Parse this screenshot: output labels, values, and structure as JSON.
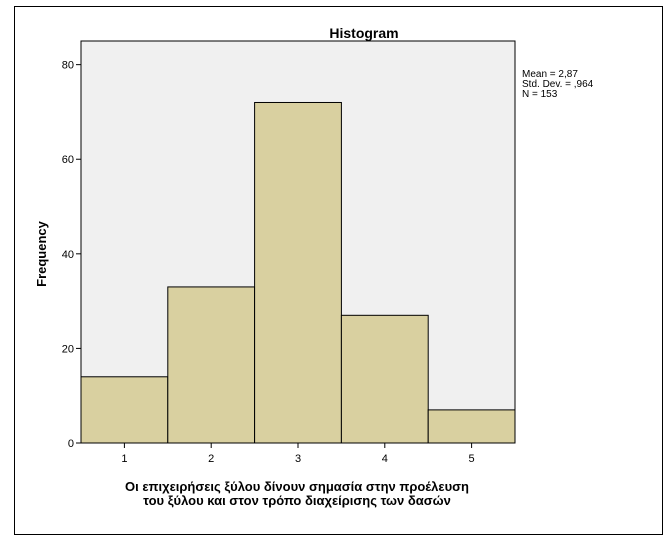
{
  "chart_data": {
    "type": "bar",
    "title": "Histogram",
    "categories": [
      "1",
      "2",
      "3",
      "4",
      "5"
    ],
    "values": [
      14,
      33,
      72,
      27,
      7
    ],
    "ylabel": "Frequency",
    "xlabel_lines": [
      "Οι επιχειρήσεις ξύλου δίνουν σημασία στην προέλευση",
      "του ξύλου και στον τρόπο διαχείρισης των δασών"
    ],
    "xlim": [
      0.5,
      5.5
    ],
    "ylim": [
      0,
      85
    ],
    "yticks": [
      0,
      20,
      40,
      60,
      80
    ],
    "grid": false,
    "stats": [
      "Mean = 2,87",
      "Std. Dev. = ,964",
      "N = 153"
    ],
    "colors": {
      "bar_fill": "#d9d0a0",
      "bar_stroke": "#000000",
      "plot_background": "#f0f0f0"
    }
  }
}
